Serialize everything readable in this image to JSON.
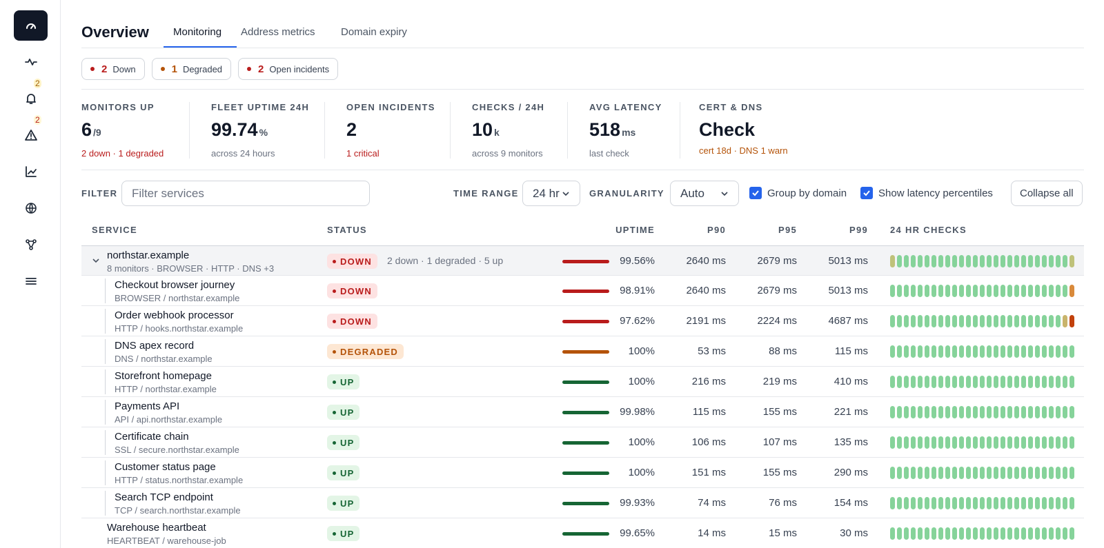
{
  "sidebar": {
    "badges": {
      "notifications": "2",
      "alerts": "2"
    }
  },
  "header": {
    "title": "Overview",
    "tabs": [
      "Monitoring",
      "Address metrics",
      "Domain expiry"
    ]
  },
  "status_pills": [
    {
      "count": "2",
      "label": "Down"
    },
    {
      "count": "1",
      "label": "Degraded"
    },
    {
      "count": "2",
      "label": "Open incidents"
    }
  ],
  "kpis": [
    {
      "label": "MONITORS UP",
      "value": "6",
      "unit": "/9",
      "sub": "2 down · 1 degraded"
    },
    {
      "label": "FLEET UPTIME 24H",
      "value": "99.74",
      "unit": "%",
      "sub": "across 24 hours"
    },
    {
      "label": "OPEN INCIDENTS",
      "value": "2",
      "unit": "",
      "sub": "1 critical"
    },
    {
      "label": "CHECKS / 24H",
      "value": "10",
      "unit": "k",
      "sub": "across 9 monitors"
    },
    {
      "label": "AVG LATENCY",
      "value": "518",
      "unit": "ms",
      "sub": "last check"
    },
    {
      "label": "CERT & DNS",
      "value": "Check",
      "unit": "",
      "sub": "cert 18d · DNS 1 warn"
    }
  ],
  "filters": {
    "filter_label": "FILTER",
    "filter_placeholder": "Filter services",
    "time_range_label": "TIME RANGE",
    "time_range_value": "24 hr",
    "granularity_label": "GRANULARITY",
    "granularity_value": "Auto",
    "group_by_domain": "Group by domain",
    "show_percentiles": "Show latency percentiles",
    "collapse_all": "Collapse all"
  },
  "table": {
    "headers": {
      "service": "SERVICE",
      "status": "STATUS",
      "uptime": "UPTIME",
      "p90": "P90",
      "p95": "P95",
      "p99": "P99",
      "checks": "24 HR CHECKS"
    },
    "group": {
      "name": "northstar.example",
      "sub": "8 monitors · BROWSER · HTTP · DNS +3",
      "status": "DOWN",
      "summary": "2 down · 1 degraded · 5 up",
      "uptime": "99.56%",
      "p90": "2640 ms",
      "p95": "2679 ms",
      "p99": "5013 ms"
    },
    "rows": [
      {
        "name": "Checkout browser journey",
        "sub": "BROWSER / northstar.example",
        "status": "DOWN",
        "uptime": "98.91%",
        "p90": "2640 ms",
        "p95": "2679 ms",
        "p99": "5013 ms"
      },
      {
        "name": "Order webhook processor",
        "sub": "HTTP / hooks.northstar.example",
        "status": "DOWN",
        "uptime": "97.62%",
        "p90": "2191 ms",
        "p95": "2224 ms",
        "p99": "4687 ms"
      },
      {
        "name": "DNS apex record",
        "sub": "DNS / northstar.example",
        "status": "DEGRADED",
        "uptime": "100%",
        "p90": "53 ms",
        "p95": "88 ms",
        "p99": "115 ms"
      },
      {
        "name": "Storefront homepage",
        "sub": "HTTP / northstar.example",
        "status": "UP",
        "uptime": "100%",
        "p90": "216 ms",
        "p95": "219 ms",
        "p99": "410 ms"
      },
      {
        "name": "Payments API",
        "sub": "API / api.northstar.example",
        "status": "UP",
        "uptime": "99.98%",
        "p90": "115 ms",
        "p95": "155 ms",
        "p99": "221 ms"
      },
      {
        "name": "Certificate chain",
        "sub": "SSL / secure.northstar.example",
        "status": "UP",
        "uptime": "100%",
        "p90": "106 ms",
        "p95": "107 ms",
        "p99": "135 ms"
      },
      {
        "name": "Customer status page",
        "sub": "HTTP / status.northstar.example",
        "status": "UP",
        "uptime": "100%",
        "p90": "151 ms",
        "p95": "155 ms",
        "p99": "290 ms"
      },
      {
        "name": "Search TCP endpoint",
        "sub": "TCP / search.northstar.example",
        "status": "UP",
        "uptime": "99.93%",
        "p90": "74 ms",
        "p95": "76 ms",
        "p99": "154 ms"
      }
    ],
    "standalone": {
      "name": "Warehouse heartbeat",
      "sub": "HEARTBEAT / warehouse-job",
      "status": "UP",
      "uptime": "99.65%",
      "p90": "14 ms",
      "p95": "15 ms",
      "p99": "30 ms"
    }
  },
  "colors": {
    "accent": "#2563eb",
    "down": "#b91c1c",
    "degraded": "#b45309",
    "up": "#166534",
    "check_ok": "#86d39a"
  }
}
